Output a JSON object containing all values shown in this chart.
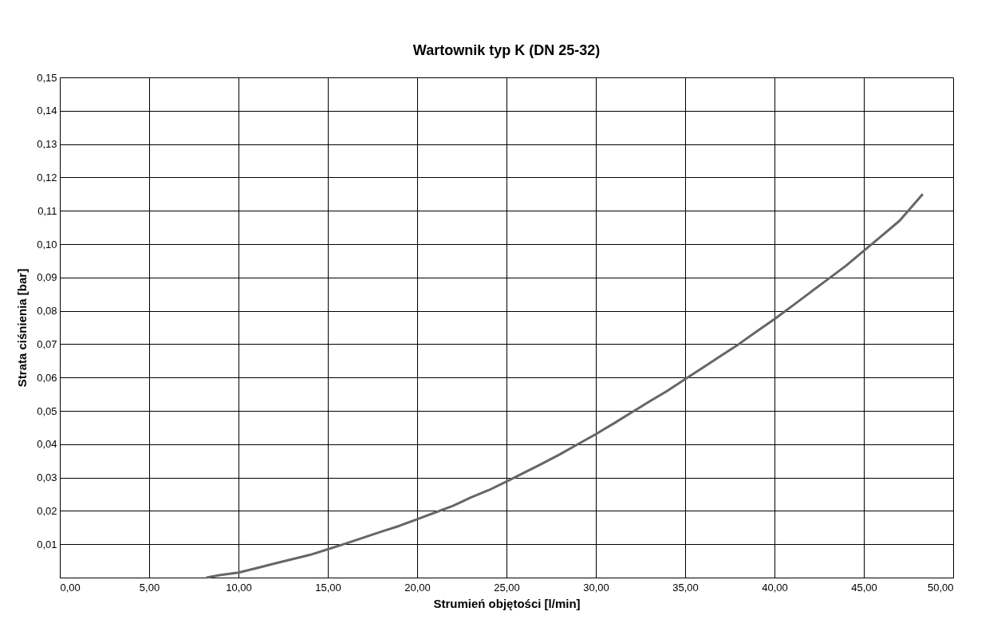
{
  "chart_data": {
    "type": "line",
    "title": "Wartownik typ K (DN 25-32)",
    "xlabel": "Strumień objętości [l/min]",
    "ylabel": "Strata ciśnienia [bar]",
    "x": [
      8.2,
      9,
      10,
      11,
      12,
      13,
      14,
      15,
      16,
      17,
      18,
      19,
      20,
      21,
      22,
      23,
      24,
      25,
      26,
      27,
      28,
      29,
      30,
      31,
      32,
      33,
      34,
      35,
      36,
      37,
      38,
      39,
      40,
      41,
      42,
      43,
      44,
      45,
      46,
      47,
      48.3
    ],
    "series": [
      {
        "color": "#666666",
        "values": [
          0,
          0.0008,
          0.0015,
          0.0028,
          0.0042,
          0.0055,
          0.0068,
          0.0085,
          0.0102,
          0.012,
          0.0138,
          0.0155,
          0.0175,
          0.0195,
          0.0215,
          0.024,
          0.0262,
          0.0288,
          0.0315,
          0.0342,
          0.037,
          0.04,
          0.043,
          0.0462,
          0.0495,
          0.0528,
          0.056,
          0.0595,
          0.063,
          0.0665,
          0.07,
          0.0738,
          0.0775,
          0.0815,
          0.0855,
          0.0895,
          0.0935,
          0.098,
          0.1025,
          0.107,
          0.115
        ]
      }
    ],
    "xlim": [
      0,
      50
    ],
    "ylim": [
      0,
      0.15
    ],
    "xticks": [
      {
        "value": 0,
        "label": "0,00"
      },
      {
        "value": 5,
        "label": "5,00"
      },
      {
        "value": 10,
        "label": "10,00"
      },
      {
        "value": 15,
        "label": "15,00"
      },
      {
        "value": 20,
        "label": "20,00"
      },
      {
        "value": 25,
        "label": "25,00"
      },
      {
        "value": 30,
        "label": "30,00"
      },
      {
        "value": 35,
        "label": "35,00"
      },
      {
        "value": 40,
        "label": "40,00"
      },
      {
        "value": 45,
        "label": "45,00"
      },
      {
        "value": 50,
        "label": "50,00"
      }
    ],
    "yticks": [
      {
        "value": 0,
        "label": null
      },
      {
        "value": 0.01,
        "label": "0,01"
      },
      {
        "value": 0.02,
        "label": "0,02"
      },
      {
        "value": 0.03,
        "label": "0,03"
      },
      {
        "value": 0.04,
        "label": "0,04"
      },
      {
        "value": 0.05,
        "label": "0,05"
      },
      {
        "value": 0.06,
        "label": "0,06"
      },
      {
        "value": 0.07,
        "label": "0,07"
      },
      {
        "value": 0.08,
        "label": "0,08"
      },
      {
        "value": 0.09,
        "label": "0,09"
      },
      {
        "value": 0.1,
        "label": "0,10"
      },
      {
        "value": 0.11,
        "label": "0,11"
      },
      {
        "value": 0.12,
        "label": "0,12"
      },
      {
        "value": 0.13,
        "label": "0,13"
      },
      {
        "value": 0.14,
        "label": "0,14"
      },
      {
        "value": 0.15,
        "label": "0,15"
      }
    ],
    "grid": true,
    "marker": "none",
    "line_style": "solid"
  }
}
